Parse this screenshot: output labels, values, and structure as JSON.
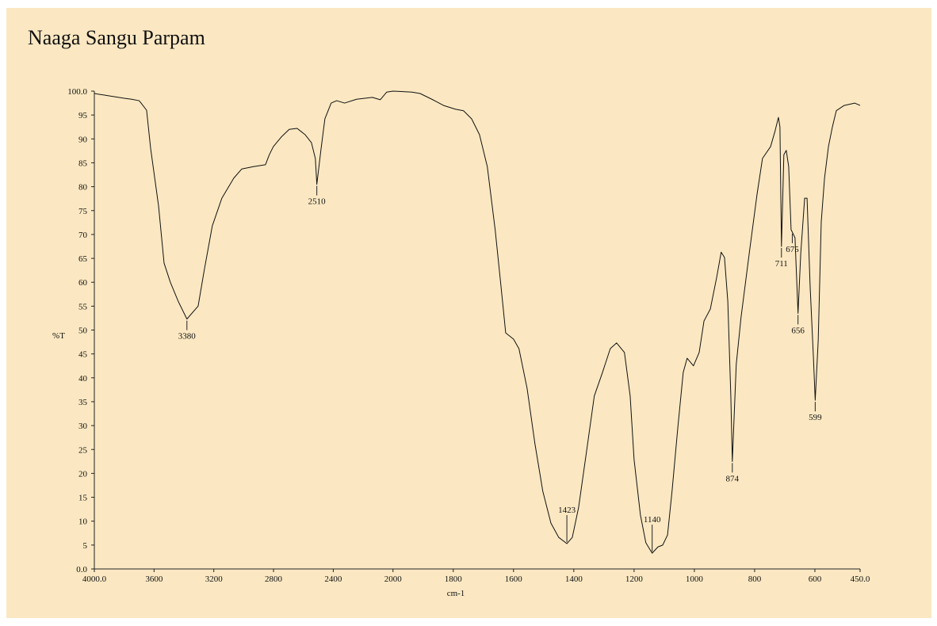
{
  "chart_data": {
    "type": "line",
    "title": "Naaga Sangu Parpam",
    "x_label": "cm-1",
    "y_label": "%T",
    "xlim": [
      4000,
      450
    ],
    "x_scale_break": 2000,
    "ylim": [
      0,
      100
    ],
    "xticks": [
      {
        "value": 4000,
        "label": "4000.0"
      },
      3600,
      3200,
      2800,
      2400,
      2000,
      1800,
      1600,
      1400,
      1200,
      1000,
      800,
      600,
      {
        "value": 450,
        "label": "450.0"
      }
    ],
    "yticks": [
      {
        "value": 0,
        "label": "0.0"
      },
      5,
      10,
      15,
      20,
      25,
      30,
      35,
      40,
      45,
      50,
      55,
      60,
      65,
      70,
      75,
      80,
      85,
      90,
      95,
      {
        "value": 100,
        "label": "100.0"
      }
    ],
    "series": [
      {
        "name": "Naaga Sangu Parpam",
        "color": "#111111",
        "x": [
          4000,
          3900,
          3800,
          3750,
          3700,
          3687,
          3650,
          3623,
          3570,
          3533,
          3491,
          3438,
          3380,
          3305,
          3263,
          3210,
          3146,
          3066,
          3013,
          2934,
          2854,
          2828,
          2801,
          2748,
          2695,
          2642,
          2589,
          2546,
          2520,
          2510,
          2483,
          2456,
          2414,
          2377,
          2324,
          2244,
          2138,
          2085,
          2042,
          2000,
          1937,
          1910,
          1871,
          1832,
          1792,
          1766,
          1739,
          1713,
          1687,
          1661,
          1642,
          1626,
          1600,
          1582,
          1555,
          1529,
          1503,
          1476,
          1450,
          1423,
          1405,
          1384,
          1358,
          1332,
          1305,
          1279,
          1258,
          1232,
          1213,
          1200,
          1179,
          1161,
          1140,
          1121,
          1105,
          1089,
          1074,
          1055,
          1037,
          1024,
          1003,
          984,
          968,
          947,
          926,
          911,
          900,
          889,
          879,
          874,
          861,
          845,
          818,
          792,
          774,
          747,
          732,
          721,
          716,
          711,
          703,
          695,
          687,
          679,
          675,
          666,
          656,
          647,
          634,
          626,
          616,
          605,
          599,
          589,
          579,
          568,
          555,
          542,
          529,
          503,
          468,
          450
        ],
        "values": [
          99.5,
          99,
          98.5,
          98.3,
          98,
          97.5,
          96,
          88,
          76,
          64,
          60,
          56,
          52.3,
          55,
          62.7,
          71.8,
          77.6,
          81.8,
          83.7,
          84.2,
          84.6,
          86.7,
          88.4,
          90.4,
          92,
          92.2,
          90.9,
          89.2,
          85.9,
          80.5,
          87.6,
          94.2,
          97.5,
          98,
          97.5,
          98.3,
          98.7,
          98.2,
          99.8,
          100,
          99.8,
          99.5,
          98.3,
          97,
          96.2,
          95.9,
          94.2,
          90.9,
          84.2,
          71,
          59.4,
          49.4,
          48.1,
          46.1,
          37.8,
          26.2,
          16.3,
          9.6,
          6.6,
          5.3,
          6.6,
          12.9,
          24.5,
          36.2,
          41.1,
          46.1,
          47.3,
          45.3,
          36.2,
          22.9,
          11.3,
          5.5,
          3.3,
          4.6,
          5,
          7.1,
          16.3,
          29.5,
          41.1,
          44.1,
          42.5,
          45.3,
          51.9,
          54.4,
          61,
          66.3,
          65.2,
          56,
          36.2,
          22.5,
          42.8,
          52.7,
          66,
          78.4,
          85.9,
          88.4,
          91.7,
          94.5,
          92.5,
          67.5,
          86.7,
          87.6,
          84.2,
          71,
          70.5,
          69.3,
          53.5,
          66,
          77.6,
          77.6,
          59.4,
          44.4,
          35.3,
          47.8,
          72.6,
          81.8,
          88.4,
          92.5,
          95.9,
          97,
          97.5,
          97
        ]
      }
    ],
    "annotations": [
      {
        "x": 3380,
        "y": 52.3
      },
      {
        "x": 2510,
        "y": 80.5
      },
      {
        "x": 1423,
        "y": 5.3
      },
      {
        "x": 1140,
        "y": 3.3
      },
      {
        "x": 874,
        "y": 22.5
      },
      {
        "x": 711,
        "y": 67.5
      },
      {
        "x": 675,
        "y": 70.5
      },
      {
        "x": 656,
        "y": 53.5
      },
      {
        "x": 599,
        "y": 35.3
      }
    ],
    "background": "#fbe8c2",
    "grid": false
  }
}
